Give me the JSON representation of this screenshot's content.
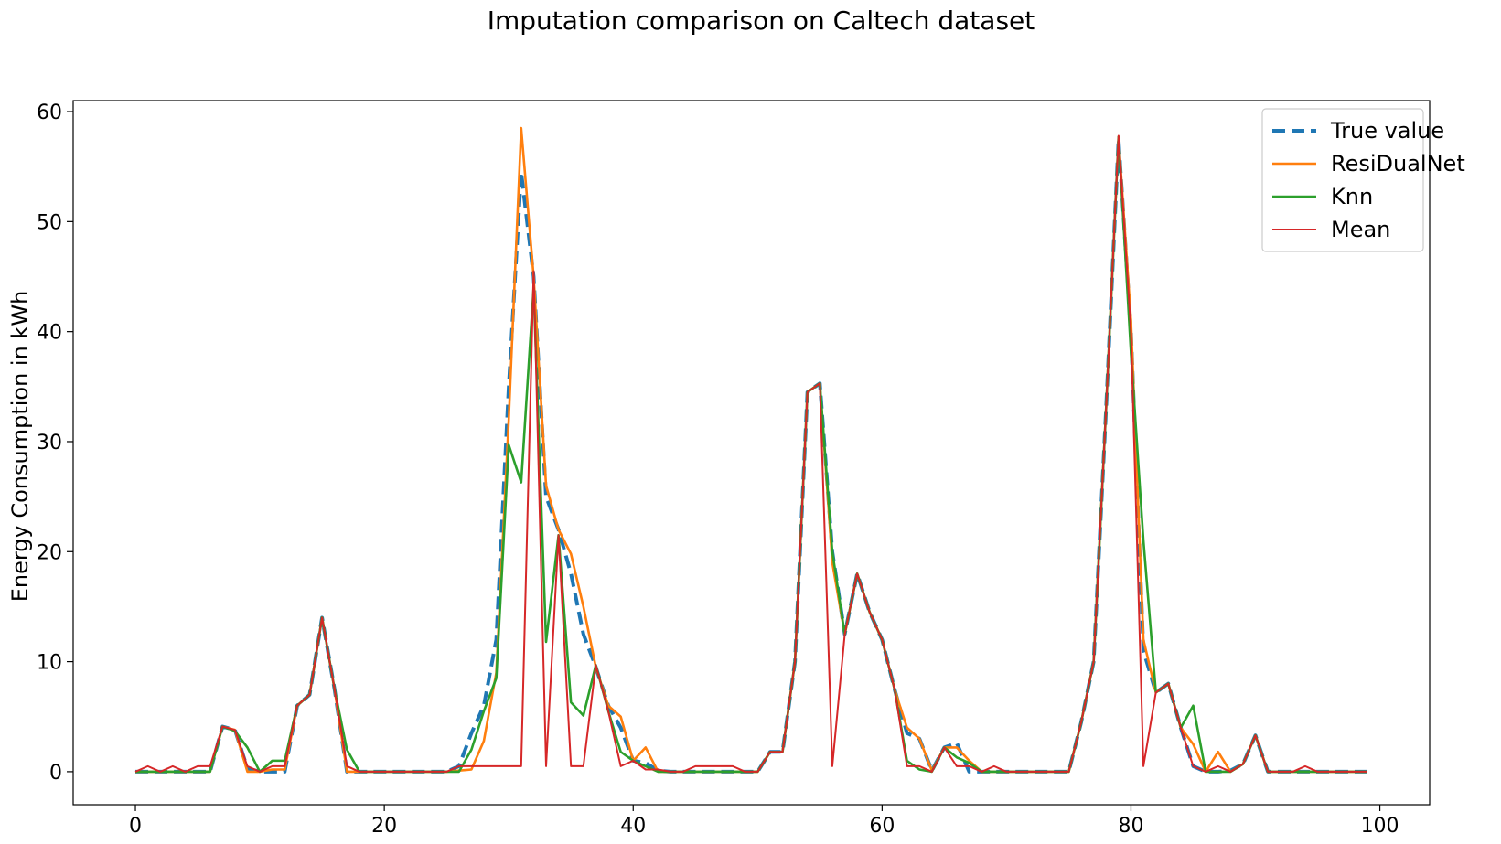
{
  "chart_data": {
    "type": "line",
    "title": "Imputation comparison on Caltech dataset",
    "xlabel": "",
    "ylabel": "Energy Consumption in kWh",
    "xlim": [
      -5,
      104
    ],
    "ylim": [
      -3,
      61
    ],
    "xticks": [
      0,
      20,
      40,
      60,
      80,
      100
    ],
    "yticks": [
      0,
      10,
      20,
      30,
      40,
      50,
      60
    ],
    "grid": false,
    "legend_position": "top-right",
    "x": [
      0,
      1,
      2,
      3,
      4,
      5,
      6,
      7,
      8,
      9,
      10,
      11,
      12,
      13,
      14,
      15,
      16,
      17,
      18,
      19,
      20,
      21,
      22,
      23,
      24,
      25,
      26,
      27,
      28,
      29,
      30,
      31,
      32,
      33,
      34,
      35,
      36,
      37,
      38,
      39,
      40,
      41,
      42,
      43,
      44,
      45,
      46,
      47,
      48,
      49,
      50,
      51,
      52,
      53,
      54,
      55,
      56,
      57,
      58,
      59,
      60,
      61,
      62,
      63,
      64,
      65,
      66,
      67,
      68,
      69,
      70,
      71,
      72,
      73,
      74,
      75,
      76,
      77,
      78,
      79,
      80,
      81,
      82,
      83,
      84,
      85,
      86,
      87,
      88,
      89,
      90,
      91,
      92,
      93,
      94,
      95,
      96,
      97,
      98,
      99
    ],
    "series": [
      {
        "name": "True value",
        "color": "#1f77b4",
        "style": "dashed",
        "values": [
          0,
          0,
          0,
          0,
          0,
          0,
          0,
          4.1,
          3.8,
          0.3,
          0,
          0,
          0,
          6,
          7,
          14,
          7.5,
          0,
          0,
          0,
          0,
          0,
          0,
          0,
          0,
          0,
          0.5,
          3.5,
          6,
          12,
          35,
          54.5,
          45,
          25,
          22,
          18,
          12.5,
          9.5,
          6,
          4,
          1,
          0.8,
          0.1,
          0,
          0,
          0,
          0,
          0,
          0,
          0,
          0,
          1.8,
          1.8,
          10,
          34.5,
          35.3,
          20,
          12.5,
          18,
          14.5,
          12,
          7.5,
          3.5,
          3,
          0.1,
          2.2,
          2.6,
          0,
          0,
          0,
          0,
          0,
          0,
          0,
          0,
          0,
          4.5,
          10,
          33,
          57.5,
          40,
          11,
          7.2,
          8,
          4,
          0.5,
          0,
          0,
          0.1,
          0.7,
          3.3,
          0,
          0,
          0,
          0,
          0,
          0,
          0,
          0,
          0
        ]
      },
      {
        "name": "ResiDualNet",
        "color": "#ff7f0e",
        "style": "solid",
        "values": [
          0,
          0,
          0,
          0,
          0,
          0,
          0,
          4.1,
          3.8,
          0,
          0,
          0.2,
          0.2,
          6,
          7,
          14,
          7.5,
          0,
          0,
          0,
          0,
          0,
          0,
          0,
          0,
          0,
          0.1,
          0.2,
          2.8,
          9,
          32,
          58.5,
          45,
          26,
          22,
          19.8,
          15,
          9.5,
          6,
          5,
          1,
          2.2,
          0,
          0,
          0,
          0,
          0,
          0,
          0,
          0,
          0,
          1.8,
          1.8,
          10,
          34.5,
          35.3,
          19,
          12.5,
          18,
          14.5,
          12,
          7.5,
          4,
          3,
          0.1,
          2.2,
          2.2,
          1,
          0,
          0,
          0,
          0,
          0,
          0,
          0,
          0,
          4.5,
          10,
          33,
          57.7,
          41,
          12,
          7.2,
          8,
          4,
          2.5,
          0,
          1.8,
          0,
          0.7,
          3.3,
          0,
          0,
          0,
          0,
          0,
          0,
          0,
          0,
          0
        ]
      },
      {
        "name": "Knn",
        "color": "#2ca02c",
        "style": "solid",
        "values": [
          0,
          0,
          0,
          0,
          0,
          0,
          0,
          4.1,
          3.7,
          2.2,
          0,
          1,
          1,
          6,
          7,
          14,
          7.5,
          2,
          0,
          0,
          0,
          0,
          0,
          0,
          0,
          0,
          0,
          2,
          5.5,
          8.5,
          29.7,
          26.3,
          44,
          11.8,
          21.5,
          6.3,
          5.1,
          9.7,
          5.5,
          1.8,
          1,
          0.5,
          0,
          0,
          0,
          0,
          0,
          0,
          0,
          0,
          0,
          1.8,
          1.8,
          10,
          34.5,
          35.3,
          20,
          12.5,
          18,
          14.5,
          12,
          7.5,
          1,
          0.2,
          0,
          2.2,
          1.3,
          0.8,
          0,
          0,
          0,
          0,
          0,
          0,
          0,
          0,
          4.5,
          10,
          33,
          57.7,
          38,
          21,
          7.2,
          8,
          4,
          6,
          0,
          0,
          0,
          0.7,
          3.3,
          0,
          0,
          0,
          0,
          0,
          0,
          0,
          0,
          0
        ]
      },
      {
        "name": "Mean",
        "color": "#d62728",
        "style": "solid",
        "values": [
          0,
          0.5,
          0,
          0.5,
          0,
          0.5,
          0.5,
          4.1,
          3.8,
          0.5,
          0,
          0.5,
          0.5,
          6,
          7,
          14,
          7.5,
          0.5,
          0,
          0,
          0,
          0,
          0,
          0,
          0,
          0,
          0.5,
          0.5,
          0.5,
          0.5,
          0.5,
          0.5,
          45.5,
          0.5,
          21.5,
          0.5,
          0.5,
          9.7,
          5.5,
          0.5,
          1,
          0.2,
          0.2,
          0,
          0,
          0.5,
          0.5,
          0.5,
          0.5,
          0,
          0,
          1.8,
          1.8,
          10,
          34.5,
          35.3,
          0.5,
          12.5,
          18,
          14.5,
          12,
          7.5,
          0.5,
          0.5,
          0,
          2.2,
          0.5,
          0.5,
          0,
          0.5,
          0,
          0,
          0,
          0,
          0,
          0,
          4.5,
          10,
          33,
          57.8,
          40,
          0.5,
          7.2,
          8,
          4,
          0.5,
          0,
          0.5,
          0,
          0.7,
          3.3,
          0,
          0,
          0,
          0.5,
          0,
          0,
          0,
          0,
          0
        ]
      }
    ]
  }
}
